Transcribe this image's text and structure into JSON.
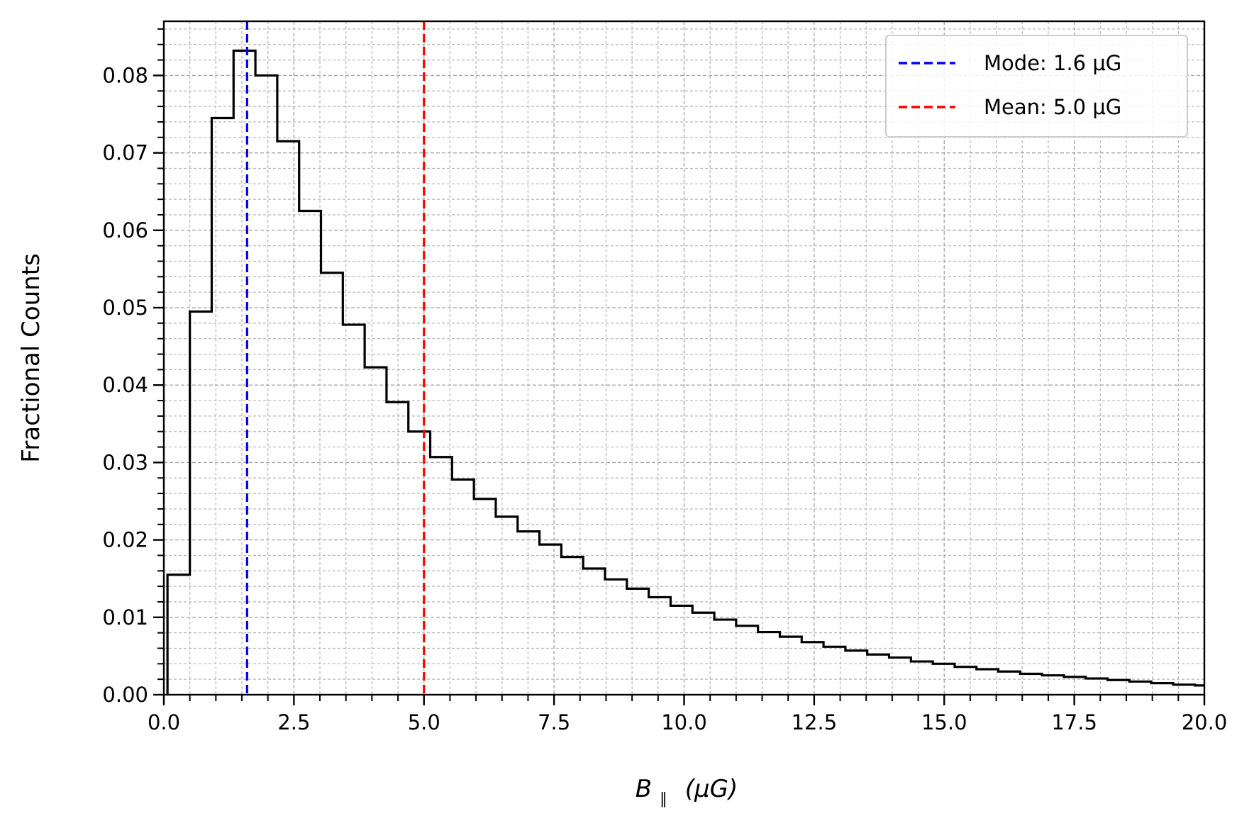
{
  "chart_data": {
    "type": "histogram",
    "xlabel_main": "B",
    "xlabel_sub": "∥",
    "xlabel_rest": "(μG)",
    "ylabel": "Fractional Counts",
    "xlim": [
      0,
      20
    ],
    "ylim": [
      0,
      0.087
    ],
    "xticks": [
      0,
      2.5,
      5,
      7.5,
      10,
      12.5,
      15,
      17.5,
      20
    ],
    "xtick_labels": [
      "0.0",
      "2.5",
      "5.0",
      "7.5",
      "10.0",
      "12.5",
      "15.0",
      "17.5",
      "20.0"
    ],
    "yticks": [
      0,
      0.01,
      0.02,
      0.03,
      0.04,
      0.05,
      0.06,
      0.07,
      0.08
    ],
    "ytick_labels": [
      "0.00",
      "0.01",
      "0.02",
      "0.03",
      "0.04",
      "0.05",
      "0.06",
      "0.07",
      "0.08"
    ],
    "x_minor_step": 0.5,
    "y_minor_step": 0.002,
    "grid": "major and minor, dashed",
    "legend_position": "top-right",
    "series": [
      {
        "color": "#000000",
        "style": "step",
        "bin_edges": [
          0.07,
          0.5,
          0.92,
          1.34,
          1.76,
          2.18,
          2.6,
          3.02,
          3.44,
          3.86,
          4.28,
          4.7,
          5.12,
          5.54,
          5.96,
          6.38,
          6.8,
          7.22,
          7.64,
          8.06,
          8.48,
          8.9,
          9.32,
          9.74,
          10.16,
          10.58,
          11.0,
          11.42,
          11.84,
          12.26,
          12.68,
          13.1,
          13.52,
          13.94,
          14.36,
          14.78,
          15.2,
          15.62,
          16.04,
          16.46,
          16.88,
          17.3,
          17.72,
          18.14,
          18.56,
          18.98,
          19.4,
          19.82,
          20.0
        ],
        "values": [
          0.0155,
          0.0495,
          0.0745,
          0.0832,
          0.08,
          0.0715,
          0.0625,
          0.0545,
          0.0478,
          0.0423,
          0.0378,
          0.034,
          0.0307,
          0.0278,
          0.0253,
          0.023,
          0.0211,
          0.0194,
          0.0178,
          0.0163,
          0.0149,
          0.0137,
          0.0126,
          0.0115,
          0.0106,
          0.0097,
          0.0089,
          0.0081,
          0.0075,
          0.0068,
          0.0062,
          0.0057,
          0.0052,
          0.0048,
          0.0043,
          0.004,
          0.0036,
          0.0033,
          0.003,
          0.0027,
          0.0025,
          0.0023,
          0.0021,
          0.0019,
          0.0017,
          0.0015,
          0.0013,
          0.0012
        ]
      }
    ],
    "reference_lines": [
      {
        "x": 1.6,
        "color": "#0000ff",
        "label": "Mode: 1.6 μG"
      },
      {
        "x": 5.0,
        "color": "#ff0000",
        "label": "Mean: 5.0 μG"
      }
    ]
  }
}
